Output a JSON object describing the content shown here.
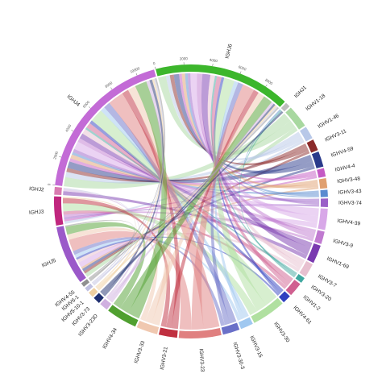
{
  "chart_data": {
    "type": "chord",
    "segments": [
      {
        "name": "IGHJ5",
        "color": "#9b59c9"
      },
      {
        "name": "IGHJ3",
        "color": "#c0267e"
      },
      {
        "name": "IGHJ2",
        "color": "#d97bb0"
      },
      {
        "name": "IGHJ4",
        "color": "#c36bd6",
        "ticks": [
          0,
          2000,
          4000,
          6000,
          8000,
          10000
        ]
      },
      {
        "name": "IGHJ6",
        "color": "#3cb62c",
        "ticks": [
          0,
          2000,
          4000,
          6000,
          8000
        ]
      },
      {
        "name": "IGHJ1",
        "color": "#bdbdbd"
      },
      {
        "name": "IGHV1-18",
        "color": "#a8d8a0"
      },
      {
        "name": "IGHV1-46",
        "color": "#b8c8e8"
      },
      {
        "name": "IGHV3-11",
        "color": "#8b2a2a"
      },
      {
        "name": "IGHV4-59",
        "color": "#2a3a8b"
      },
      {
        "name": "IGHV4-4",
        "color": "#c45ac4"
      },
      {
        "name": "IGHV3-48",
        "color": "#e0a070"
      },
      {
        "name": "IGHV3-43",
        "color": "#5a8bd0"
      },
      {
        "name": "IGHV3-74",
        "color": "#9a60c8"
      },
      {
        "name": "IGHV4-39",
        "color": "#d8a8e8"
      },
      {
        "name": "IGHV3-9",
        "color": "#c07ad0"
      },
      {
        "name": "IGHV1-69",
        "color": "#7a3ab0"
      },
      {
        "name": "IGHV3-7",
        "color": "#e8c0d0"
      },
      {
        "name": "IGHV3-20",
        "color": "#40a8a0"
      },
      {
        "name": "IGHV1-2",
        "color": "#d06090"
      },
      {
        "name": "IGHV4-61",
        "color": "#3040c0"
      },
      {
        "name": "IGHV3-30",
        "color": "#b0e0a0"
      },
      {
        "name": "IGHV3-15",
        "color": "#a0c8f0"
      },
      {
        "name": "IGHV3-30-3",
        "color": "#6a70c8"
      },
      {
        "name": "IGHV3-23",
        "color": "#e08080"
      },
      {
        "name": "IGHV3-21",
        "color": "#c03040"
      },
      {
        "name": "IGHV3-33",
        "color": "#f0c8b0"
      },
      {
        "name": "IGHV4-34",
        "color": "#50a030"
      },
      {
        "name": "IGHV3-23D",
        "color": "#d0b0e0"
      },
      {
        "name": "IGHV3-73",
        "color": "#203070"
      },
      {
        "name": "IGHV5-10-1",
        "color": "#f0d0a0"
      },
      {
        "name": "IGHV6-1",
        "color": "#c0c0e0"
      },
      {
        "name": "IGHV4-55",
        "color": "#909090"
      }
    ],
    "links": [
      {
        "source": "IGHJ4",
        "target": "IGHV1-18",
        "value": 700
      },
      {
        "source": "IGHJ6",
        "target": "IGHV1-18",
        "value": 600
      },
      {
        "source": "IGHJ5",
        "target": "IGHV1-18",
        "value": 300
      },
      {
        "source": "IGHJ4",
        "target": "IGHV1-46",
        "value": 400
      },
      {
        "source": "IGHJ6",
        "target": "IGHV1-46",
        "value": 300
      },
      {
        "source": "IGHJ3",
        "target": "IGHV1-46",
        "value": 200
      },
      {
        "source": "IGHJ4",
        "target": "IGHV3-11",
        "value": 300
      },
      {
        "source": "IGHJ6",
        "target": "IGHV3-11",
        "value": 300
      },
      {
        "source": "IGHJ5",
        "target": "IGHV3-11",
        "value": 200
      },
      {
        "source": "IGHJ4",
        "target": "IGHV4-59",
        "value": 500
      },
      {
        "source": "IGHJ6",
        "target": "IGHV4-59",
        "value": 400
      },
      {
        "source": "IGHJ5",
        "target": "IGHV4-59",
        "value": 200
      },
      {
        "source": "IGHJ4",
        "target": "IGHV4-4",
        "value": 250
      },
      {
        "source": "IGHJ6",
        "target": "IGHV4-4",
        "value": 200
      },
      {
        "source": "IGHJ3",
        "target": "IGHV4-4",
        "value": 150
      },
      {
        "source": "IGHJ4",
        "target": "IGHV3-48",
        "value": 300
      },
      {
        "source": "IGHJ6",
        "target": "IGHV3-48",
        "value": 250
      },
      {
        "source": "IGHJ5",
        "target": "IGHV3-48",
        "value": 150
      },
      {
        "source": "IGHJ4",
        "target": "IGHV3-43",
        "value": 200
      },
      {
        "source": "IGHJ6",
        "target": "IGHV3-43",
        "value": 200
      },
      {
        "source": "IGHJ1",
        "target": "IGHV3-43",
        "value": 100
      },
      {
        "source": "IGHJ4",
        "target": "IGHV3-74",
        "value": 250
      },
      {
        "source": "IGHJ6",
        "target": "IGHV3-74",
        "value": 200
      },
      {
        "source": "IGHJ3",
        "target": "IGHV3-74",
        "value": 150
      },
      {
        "source": "IGHJ4",
        "target": "IGHV4-39",
        "value": 600
      },
      {
        "source": "IGHJ6",
        "target": "IGHV4-39",
        "value": 500
      },
      {
        "source": "IGHJ5",
        "target": "IGHV4-39",
        "value": 400
      },
      {
        "source": "IGHJ4",
        "target": "IGHV3-9",
        "value": 300
      },
      {
        "source": "IGHJ6",
        "target": "IGHV3-9",
        "value": 400
      },
      {
        "source": "IGHJ3",
        "target": "IGHV3-9",
        "value": 200
      },
      {
        "source": "IGHJ4",
        "target": "IGHV1-69",
        "value": 400
      },
      {
        "source": "IGHJ6",
        "target": "IGHV1-69",
        "value": 600
      },
      {
        "source": "IGHJ2",
        "target": "IGHV1-69",
        "value": 300
      },
      {
        "source": "IGHJ4",
        "target": "IGHV3-7",
        "value": 400
      },
      {
        "source": "IGHJ6",
        "target": "IGHV3-7",
        "value": 350
      },
      {
        "source": "IGHJ5",
        "target": "IGHV3-7",
        "value": 250
      },
      {
        "source": "IGHJ4",
        "target": "IGHV3-20",
        "value": 150
      },
      {
        "source": "IGHJ6",
        "target": "IGHV3-20",
        "value": 150
      },
      {
        "source": "IGHJ1",
        "target": "IGHV3-20",
        "value": 100
      },
      {
        "source": "IGHJ4",
        "target": "IGHV1-2",
        "value": 400
      },
      {
        "source": "IGHJ6",
        "target": "IGHV1-2",
        "value": 350
      },
      {
        "source": "IGHJ3",
        "target": "IGHV1-2",
        "value": 250
      },
      {
        "source": "IGHJ4",
        "target": "IGHV4-61",
        "value": 250
      },
      {
        "source": "IGHJ6",
        "target": "IGHV4-61",
        "value": 200
      },
      {
        "source": "IGHJ5",
        "target": "IGHV4-61",
        "value": 150
      },
      {
        "source": "IGHJ4",
        "target": "IGHV3-30",
        "value": 1000
      },
      {
        "source": "IGHJ6",
        "target": "IGHV3-30",
        "value": 800
      },
      {
        "source": "IGHJ3",
        "target": "IGHV3-30",
        "value": 600
      },
      {
        "source": "IGHJ4",
        "target": "IGHV3-15",
        "value": 350
      },
      {
        "source": "IGHJ6",
        "target": "IGHV3-15",
        "value": 300
      },
      {
        "source": "IGHJ5",
        "target": "IGHV3-15",
        "value": 250
      },
      {
        "source": "IGHJ4",
        "target": "IGHV3-30-3",
        "value": 500
      },
      {
        "source": "IGHJ6",
        "target": "IGHV3-30-3",
        "value": 400
      },
      {
        "source": "IGHJ5",
        "target": "IGHV3-30-3",
        "value": 300
      },
      {
        "source": "IGHJ4",
        "target": "IGHV3-23",
        "value": 1200
      },
      {
        "source": "IGHJ6",
        "target": "IGHV3-23",
        "value": 900
      },
      {
        "source": "IGHJ5",
        "target": "IGHV3-23",
        "value": 900
      },
      {
        "source": "IGHJ4",
        "target": "IGHV3-21",
        "value": 500
      },
      {
        "source": "IGHJ6",
        "target": "IGHV3-21",
        "value": 400
      },
      {
        "source": "IGHJ3",
        "target": "IGHV3-21",
        "value": 400
      },
      {
        "source": "IGHJ4",
        "target": "IGHV3-33",
        "value": 600
      },
      {
        "source": "IGHJ6",
        "target": "IGHV3-33",
        "value": 500
      },
      {
        "source": "IGHJ5",
        "target": "IGHV3-33",
        "value": 400
      },
      {
        "source": "IGHJ4",
        "target": "IGHV4-34",
        "value": 900
      },
      {
        "source": "IGHJ6",
        "target": "IGHV4-34",
        "value": 700
      },
      {
        "source": "IGHJ5",
        "target": "IGHV4-34",
        "value": 600
      },
      {
        "source": "IGHJ4",
        "target": "IGHV3-23D",
        "value": 250
      },
      {
        "source": "IGHJ6",
        "target": "IGHV3-23D",
        "value": 200
      },
      {
        "source": "IGHJ2",
        "target": "IGHV3-23D",
        "value": 150
      },
      {
        "source": "IGHJ4",
        "target": "IGHV3-73",
        "value": 200
      },
      {
        "source": "IGHJ6",
        "target": "IGHV3-73",
        "value": 150
      },
      {
        "source": "IGHJ1",
        "target": "IGHV3-73",
        "value": 150
      },
      {
        "source": "IGHJ4",
        "target": "IGHV5-10-1",
        "value": 150
      },
      {
        "source": "IGHJ6",
        "target": "IGHV5-10-1",
        "value": 150
      },
      {
        "source": "IGHJ3",
        "target": "IGHV5-10-1",
        "value": 100
      },
      {
        "source": "IGHJ4",
        "target": "IGHV6-1",
        "value": 100
      },
      {
        "source": "IGHJ6",
        "target": "IGHV6-1",
        "value": 100
      },
      {
        "source": "IGHJ2",
        "target": "IGHV6-1",
        "value": 100
      },
      {
        "source": "IGHJ4",
        "target": "IGHV4-55",
        "value": 100
      },
      {
        "source": "IGHJ6",
        "target": "IGHV4-55",
        "value": 100
      },
      {
        "source": "IGHJ5",
        "target": "IGHV4-55",
        "value": 100
      }
    ]
  }
}
